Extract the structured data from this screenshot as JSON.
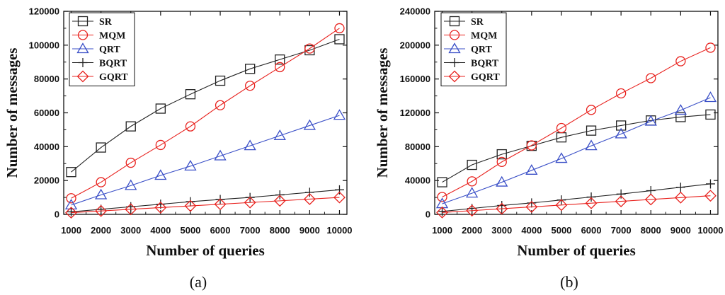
{
  "chart_data": [
    {
      "type": "line",
      "panel_label": "(a)",
      "xlabel": "Number of queries",
      "ylabel": "Number of messages",
      "x": [
        1000,
        2000,
        3000,
        4000,
        5000,
        6000,
        7000,
        8000,
        9000,
        10000
      ],
      "xlim": [
        750,
        10250
      ],
      "ylim": [
        0,
        120000
      ],
      "yticks": [
        0,
        20000,
        40000,
        60000,
        80000,
        100000,
        120000
      ],
      "legend_position": "top-left",
      "series": [
        {
          "name": "SR",
          "color": "#222222",
          "marker": "square",
          "values": [
            25000,
            39500,
            52000,
            62500,
            71000,
            79000,
            86000,
            91500,
            97000,
            103500
          ]
        },
        {
          "name": "MQM",
          "color": "#e8211d",
          "marker": "circle",
          "values": [
            9500,
            19000,
            30500,
            41000,
            52000,
            64500,
            76000,
            87000,
            98000,
            110000
          ]
        },
        {
          "name": "QRT",
          "color": "#3a4fc7",
          "marker": "triangle",
          "values": [
            5500,
            11500,
            17000,
            23000,
            28500,
            34500,
            40500,
            46500,
            52500,
            58500
          ]
        },
        {
          "name": "BQRT",
          "color": "#222222",
          "marker": "plus",
          "values": [
            1500,
            3000,
            4500,
            6000,
            7500,
            8800,
            10000,
            11500,
            13000,
            14500
          ]
        },
        {
          "name": "GQRT",
          "color": "#e8211d",
          "marker": "diamond",
          "values": [
            1000,
            2000,
            3000,
            4000,
            5000,
            6000,
            7000,
            8000,
            9000,
            10000
          ]
        }
      ]
    },
    {
      "type": "line",
      "panel_label": "(b)",
      "xlabel": "Number of queries",
      "ylabel": "Number of messages",
      "x": [
        1000,
        2000,
        3000,
        4000,
        5000,
        6000,
        7000,
        8000,
        9000,
        10000
      ],
      "xlim": [
        750,
        10250
      ],
      "ylim": [
        0,
        240000
      ],
      "yticks": [
        0,
        40000,
        80000,
        120000,
        160000,
        200000,
        240000
      ],
      "legend_position": "top-left",
      "series": [
        {
          "name": "SR",
          "color": "#222222",
          "marker": "square",
          "values": [
            38000,
            58500,
            71000,
            81000,
            91000,
            99000,
            105000,
            111000,
            115000,
            118000
          ]
        },
        {
          "name": "MQM",
          "color": "#e8211d",
          "marker": "circle",
          "values": [
            20500,
            39000,
            62000,
            81500,
            102000,
            123500,
            143000,
            161000,
            181000,
            197000
          ]
        },
        {
          "name": "QRT",
          "color": "#3a4fc7",
          "marker": "triangle",
          "values": [
            12500,
            25000,
            38000,
            52000,
            66000,
            81000,
            95000,
            110000,
            123000,
            138000
          ]
        },
        {
          "name": "BQRT",
          "color": "#222222",
          "marker": "plus",
          "values": [
            3500,
            7000,
            10500,
            13500,
            17000,
            20500,
            24000,
            28000,
            32000,
            36000
          ]
        },
        {
          "name": "GQRT",
          "color": "#e8211d",
          "marker": "diamond",
          "values": [
            2200,
            4400,
            6600,
            8800,
            11000,
            13200,
            15400,
            17600,
            19800,
            22000
          ]
        }
      ]
    }
  ]
}
